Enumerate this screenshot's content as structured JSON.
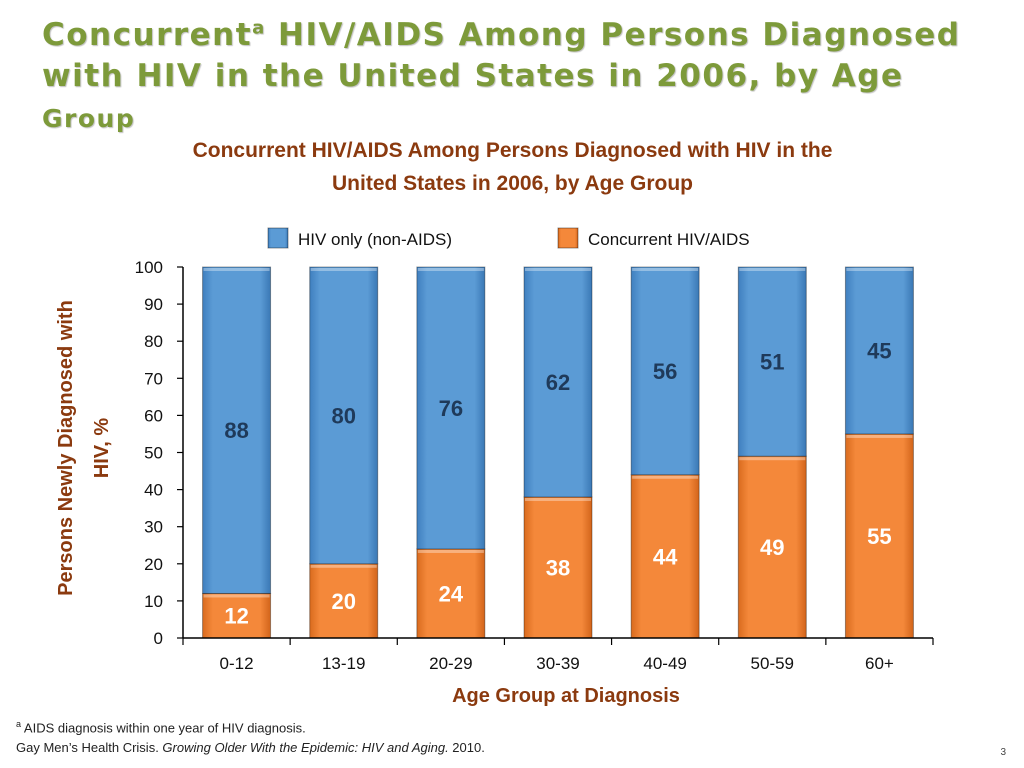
{
  "slide": {
    "title_line_1": "Concurrent",
    "title_superscript": "a",
    "title_line_1_rest": " HIV/AIDS Among Persons Diagnosed",
    "title_line_2": "with HIV in the United States in 2006, by Age",
    "title_line_3": "Group",
    "footnote_marker": "a",
    "footnote_text": " AIDS diagnosis within one year of HIV diagnosis.",
    "citation_plain": "Gay Men’s Health Crisis. ",
    "citation_italic": "Growing Older With the Epidemic: HIV and Aging.",
    "citation_year": " 2010.",
    "slide_number": "3"
  },
  "colors": {
    "title": "#7d9a3a",
    "chart_title": "#8b3a0f",
    "hiv_only": "#5b9bd5",
    "concurrent": "#f4883a"
  },
  "chart_data": {
    "type": "bar",
    "stacked": true,
    "title_line_1": "Concurrent HIV/AIDS Among Persons Diagnosed with HIV in the",
    "title_line_2": "United States in 2006, by Age Group",
    "xlabel": "Age Group at Diagnosis",
    "ylabel_line_1": "Persons Newly Diagnosed with",
    "ylabel_line_2": "HIV, %",
    "ylim": [
      0,
      100
    ],
    "yticks": [
      0,
      10,
      20,
      30,
      40,
      50,
      60,
      70,
      80,
      90,
      100
    ],
    "grid": false,
    "legend_position": "top",
    "categories": [
      "0-12",
      "13-19",
      "20-29",
      "30-39",
      "40-49",
      "50-59",
      "60+"
    ],
    "series": [
      {
        "name": "Concurrent HIV/AIDS",
        "color": "#f4883a",
        "values": [
          12,
          20,
          24,
          38,
          44,
          49,
          55
        ]
      },
      {
        "name": "HIV only (non-AIDS)",
        "color": "#5b9bd5",
        "values": [
          88,
          80,
          76,
          62,
          56,
          51,
          45
        ]
      }
    ],
    "legend_order": [
      "HIV only (non-AIDS)",
      "Concurrent HIV/AIDS"
    ]
  }
}
